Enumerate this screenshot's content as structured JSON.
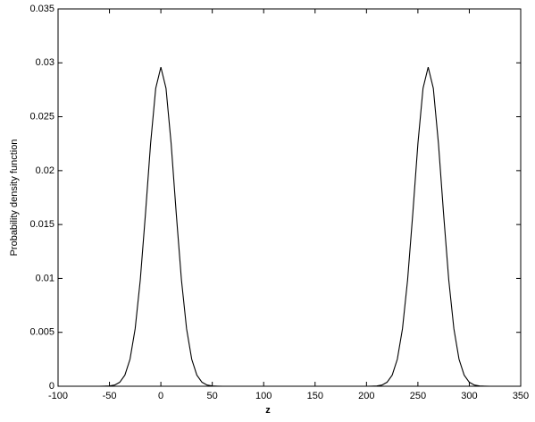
{
  "chart_data": {
    "type": "line",
    "xlabel": "z",
    "ylabel": "Probability density function",
    "x": [
      -100,
      -60,
      -55,
      -50,
      -45,
      -40,
      -35,
      -30,
      -25,
      -20,
      -15,
      -10,
      -5,
      0,
      5,
      10,
      15,
      20,
      25,
      30,
      35,
      40,
      45,
      50,
      55,
      60,
      200,
      205,
      210,
      215,
      220,
      225,
      230,
      235,
      240,
      245,
      250,
      255,
      260,
      265,
      270,
      275,
      280,
      285,
      290,
      295,
      300,
      305,
      310,
      315,
      320,
      350
    ],
    "series": [
      {
        "color": "#000000",
        "values": [
          0,
          0,
          1e-05,
          3e-05,
          0.00011,
          0.00037,
          0.00103,
          0.00251,
          0.00533,
          0.00988,
          0.01597,
          0.0225,
          0.02764,
          0.0296,
          0.02764,
          0.0225,
          0.01597,
          0.00988,
          0.00533,
          0.00251,
          0.00103,
          0.00037,
          0.00011,
          3e-05,
          1e-05,
          0,
          0,
          1e-05,
          3e-05,
          0.00011,
          0.00037,
          0.00103,
          0.00251,
          0.00533,
          0.00988,
          0.01597,
          0.0225,
          0.02764,
          0.0296,
          0.02764,
          0.0225,
          0.01597,
          0.00988,
          0.00533,
          0.00251,
          0.00103,
          0.00037,
          0.00011,
          3e-05,
          1e-05,
          0,
          0
        ]
      }
    ],
    "xlim": [
      -100,
      350
    ],
    "xticks": [
      -100,
      -50,
      0,
      50,
      100,
      150,
      200,
      250,
      300,
      350
    ],
    "ylim": [
      0,
      0.035
    ],
    "yticks": [
      0,
      0.005,
      0.01,
      0.015,
      0.02,
      0.025,
      0.03,
      0.035
    ],
    "grid": false
  }
}
